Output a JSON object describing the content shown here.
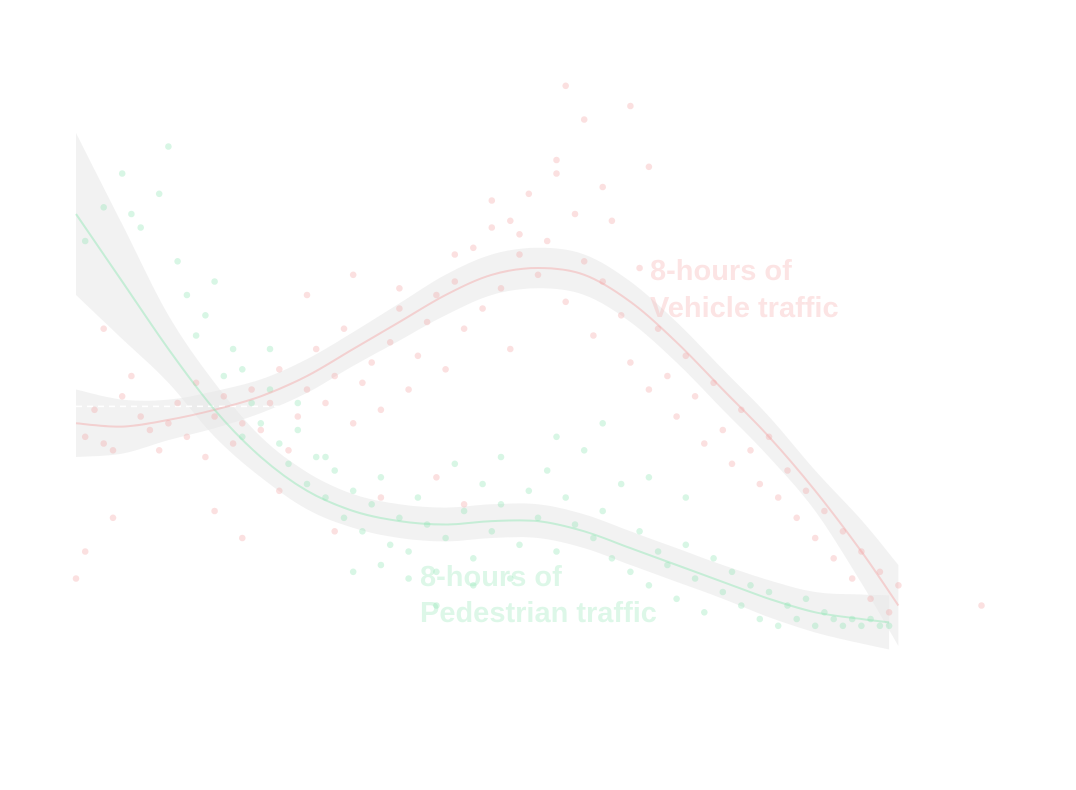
{
  "chart_data": {
    "type": "scatter",
    "title": "",
    "xlabel": "",
    "ylabel": "",
    "grid": false,
    "legend": "none",
    "xlim": [
      0,
      100
    ],
    "ylim": [
      0,
      100
    ],
    "reference_line_y": 43.5,
    "colors": {
      "vehicle": "#f4a6a6",
      "pedestrian": "#8fe6b4",
      "band": "#e6e6e6",
      "reference": "#ffffff"
    },
    "series": [
      {
        "key": "vehicle",
        "trend": [
          [
            0,
            41
          ],
          [
            5,
            40.5
          ],
          [
            10,
            41.5
          ],
          [
            15,
            43
          ],
          [
            20,
            45
          ],
          [
            25,
            48
          ],
          [
            30,
            52
          ],
          [
            35,
            56
          ],
          [
            40,
            60
          ],
          [
            45,
            63
          ],
          [
            50,
            64
          ],
          [
            55,
            63
          ],
          [
            60,
            59
          ],
          [
            65,
            53
          ],
          [
            70,
            46
          ],
          [
            75,
            39
          ],
          [
            80,
            31
          ],
          [
            85,
            22
          ],
          [
            89,
            14
          ]
        ],
        "band_halfwidth": [
          [
            0,
            5
          ],
          [
            10,
            3
          ],
          [
            20,
            2.5
          ],
          [
            30,
            2.5
          ],
          [
            40,
            3
          ],
          [
            50,
            3
          ],
          [
            60,
            3
          ],
          [
            70,
            3
          ],
          [
            80,
            3
          ],
          [
            89,
            6
          ]
        ],
        "points": [
          [
            1,
            39
          ],
          [
            2,
            43
          ],
          [
            3,
            38
          ],
          [
            4,
            37
          ],
          [
            5,
            45
          ],
          [
            6,
            48
          ],
          [
            7,
            42
          ],
          [
            8,
            40
          ],
          [
            9,
            37
          ],
          [
            10,
            41
          ],
          [
            11,
            44
          ],
          [
            12,
            39
          ],
          [
            13,
            47
          ],
          [
            14,
            36
          ],
          [
            15,
            42
          ],
          [
            16,
            45
          ],
          [
            17,
            38
          ],
          [
            18,
            41
          ],
          [
            19,
            46
          ],
          [
            20,
            40
          ],
          [
            21,
            44
          ],
          [
            22,
            49
          ],
          [
            23,
            37
          ],
          [
            24,
            42
          ],
          [
            25,
            46
          ],
          [
            26,
            52
          ],
          [
            27,
            44
          ],
          [
            28,
            48
          ],
          [
            29,
            55
          ],
          [
            30,
            41
          ],
          [
            31,
            47
          ],
          [
            32,
            50
          ],
          [
            33,
            43
          ],
          [
            34,
            53
          ],
          [
            35,
            58
          ],
          [
            36,
            46
          ],
          [
            37,
            51
          ],
          [
            38,
            56
          ],
          [
            39,
            60
          ],
          [
            40,
            49
          ],
          [
            41,
            62
          ],
          [
            42,
            55
          ],
          [
            43,
            67
          ],
          [
            44,
            58
          ],
          [
            45,
            70
          ],
          [
            46,
            61
          ],
          [
            47,
            52
          ],
          [
            48,
            66
          ],
          [
            49,
            75
          ],
          [
            50,
            63
          ],
          [
            51,
            68
          ],
          [
            52,
            80
          ],
          [
            53,
            59
          ],
          [
            54,
            72
          ],
          [
            55,
            65
          ],
          [
            56,
            54
          ],
          [
            57,
            62
          ],
          [
            58,
            71
          ],
          [
            59,
            57
          ],
          [
            60,
            50
          ],
          [
            61,
            64
          ],
          [
            62,
            46
          ],
          [
            63,
            55
          ],
          [
            64,
            48
          ],
          [
            65,
            42
          ],
          [
            66,
            51
          ],
          [
            67,
            45
          ],
          [
            68,
            38
          ],
          [
            69,
            47
          ],
          [
            70,
            40
          ],
          [
            71,
            35
          ],
          [
            72,
            43
          ],
          [
            73,
            37
          ],
          [
            74,
            32
          ],
          [
            75,
            39
          ],
          [
            76,
            30
          ],
          [
            77,
            34
          ],
          [
            78,
            27
          ],
          [
            79,
            31
          ],
          [
            80,
            24
          ],
          [
            81,
            28
          ],
          [
            82,
            21
          ],
          [
            83,
            25
          ],
          [
            84,
            18
          ],
          [
            85,
            22
          ],
          [
            86,
            15
          ],
          [
            87,
            19
          ],
          [
            88,
            13
          ],
          [
            89,
            17
          ],
          [
            98,
            14
          ],
          [
            53,
            91
          ],
          [
            55,
            86
          ],
          [
            60,
            88
          ],
          [
            52,
            78
          ],
          [
            47,
            71
          ],
          [
            48,
            69
          ],
          [
            41,
            66
          ],
          [
            45,
            74
          ],
          [
            57,
            76
          ],
          [
            62,
            79
          ],
          [
            35,
            61
          ],
          [
            30,
            63
          ],
          [
            25,
            60
          ],
          [
            3,
            55
          ],
          [
            1,
            22
          ],
          [
            4,
            27
          ],
          [
            0,
            18
          ],
          [
            15,
            28
          ],
          [
            18,
            24
          ],
          [
            22,
            31
          ],
          [
            28,
            25
          ],
          [
            33,
            30
          ],
          [
            39,
            33
          ],
          [
            42,
            29
          ]
        ]
      },
      {
        "key": "pedestrian",
        "trend": [
          [
            0,
            72
          ],
          [
            5,
            62
          ],
          [
            10,
            52
          ],
          [
            15,
            43
          ],
          [
            20,
            36
          ],
          [
            25,
            31
          ],
          [
            30,
            28
          ],
          [
            35,
            26.5
          ],
          [
            40,
            26
          ],
          [
            45,
            26.5
          ],
          [
            50,
            26.5
          ],
          [
            55,
            25
          ],
          [
            60,
            22.5
          ],
          [
            65,
            20
          ],
          [
            70,
            17.5
          ],
          [
            75,
            15
          ],
          [
            80,
            13
          ],
          [
            85,
            12
          ],
          [
            88,
            11.5
          ]
        ],
        "band_halfwidth": [
          [
            0,
            12
          ],
          [
            10,
            5
          ],
          [
            20,
            3
          ],
          [
            30,
            2.5
          ],
          [
            40,
            2.5
          ],
          [
            50,
            2.5
          ],
          [
            60,
            2.5
          ],
          [
            70,
            2.5
          ],
          [
            80,
            3
          ],
          [
            88,
            4
          ]
        ],
        "points": [
          [
            1,
            68
          ],
          [
            3,
            73
          ],
          [
            5,
            78
          ],
          [
            7,
            70
          ],
          [
            9,
            75
          ],
          [
            10,
            82
          ],
          [
            12,
            60
          ],
          [
            14,
            57
          ],
          [
            15,
            62
          ],
          [
            17,
            52
          ],
          [
            18,
            49
          ],
          [
            19,
            44
          ],
          [
            20,
            41
          ],
          [
            21,
            46
          ],
          [
            22,
            38
          ],
          [
            23,
            35
          ],
          [
            24,
            40
          ],
          [
            25,
            32
          ],
          [
            26,
            36
          ],
          [
            27,
            30
          ],
          [
            28,
            34
          ],
          [
            29,
            27
          ],
          [
            30,
            31
          ],
          [
            31,
            25
          ],
          [
            32,
            29
          ],
          [
            33,
            33
          ],
          [
            34,
            23
          ],
          [
            35,
            27
          ],
          [
            36,
            22
          ],
          [
            37,
            30
          ],
          [
            38,
            26
          ],
          [
            39,
            19
          ],
          [
            40,
            24
          ],
          [
            41,
            35
          ],
          [
            42,
            28
          ],
          [
            43,
            21
          ],
          [
            44,
            32
          ],
          [
            45,
            25
          ],
          [
            46,
            29
          ],
          [
            47,
            18
          ],
          [
            48,
            23
          ],
          [
            49,
            31
          ],
          [
            50,
            27
          ],
          [
            51,
            34
          ],
          [
            52,
            22
          ],
          [
            53,
            30
          ],
          [
            54,
            26
          ],
          [
            55,
            37
          ],
          [
            56,
            24
          ],
          [
            57,
            28
          ],
          [
            58,
            21
          ],
          [
            59,
            32
          ],
          [
            60,
            19
          ],
          [
            61,
            25
          ],
          [
            62,
            17
          ],
          [
            63,
            22
          ],
          [
            64,
            20
          ],
          [
            65,
            15
          ],
          [
            66,
            23
          ],
          [
            67,
            18
          ],
          [
            68,
            13
          ],
          [
            69,
            21
          ],
          [
            70,
            16
          ],
          [
            71,
            19
          ],
          [
            72,
            14
          ],
          [
            73,
            17
          ],
          [
            74,
            12
          ],
          [
            75,
            16
          ],
          [
            76,
            11
          ],
          [
            77,
            14
          ],
          [
            78,
            12
          ],
          [
            79,
            15
          ],
          [
            80,
            11
          ],
          [
            81,
            13
          ],
          [
            82,
            12
          ],
          [
            83,
            11
          ],
          [
            84,
            12
          ],
          [
            85,
            11
          ],
          [
            86,
            12
          ],
          [
            87,
            11
          ],
          [
            88,
            11
          ],
          [
            6,
            72
          ],
          [
            11,
            65
          ],
          [
            13,
            54
          ],
          [
            16,
            48
          ],
          [
            18,
            39
          ],
          [
            21,
            52
          ],
          [
            24,
            44
          ],
          [
            27,
            36
          ],
          [
            30,
            19
          ],
          [
            33,
            20
          ],
          [
            36,
            18
          ],
          [
            39,
            14
          ],
          [
            43,
            17
          ],
          [
            46,
            36
          ],
          [
            52,
            39
          ],
          [
            57,
            41
          ],
          [
            62,
            33
          ],
          [
            66,
            30
          ]
        ]
      }
    ],
    "annotations": [
      {
        "series": "vehicle",
        "lines": [
          "8-hours of",
          "Vehicle traffic"
        ]
      },
      {
        "series": "pedestrian",
        "lines": [
          "8-hours of",
          "Pedestrian traffic"
        ]
      }
    ]
  }
}
